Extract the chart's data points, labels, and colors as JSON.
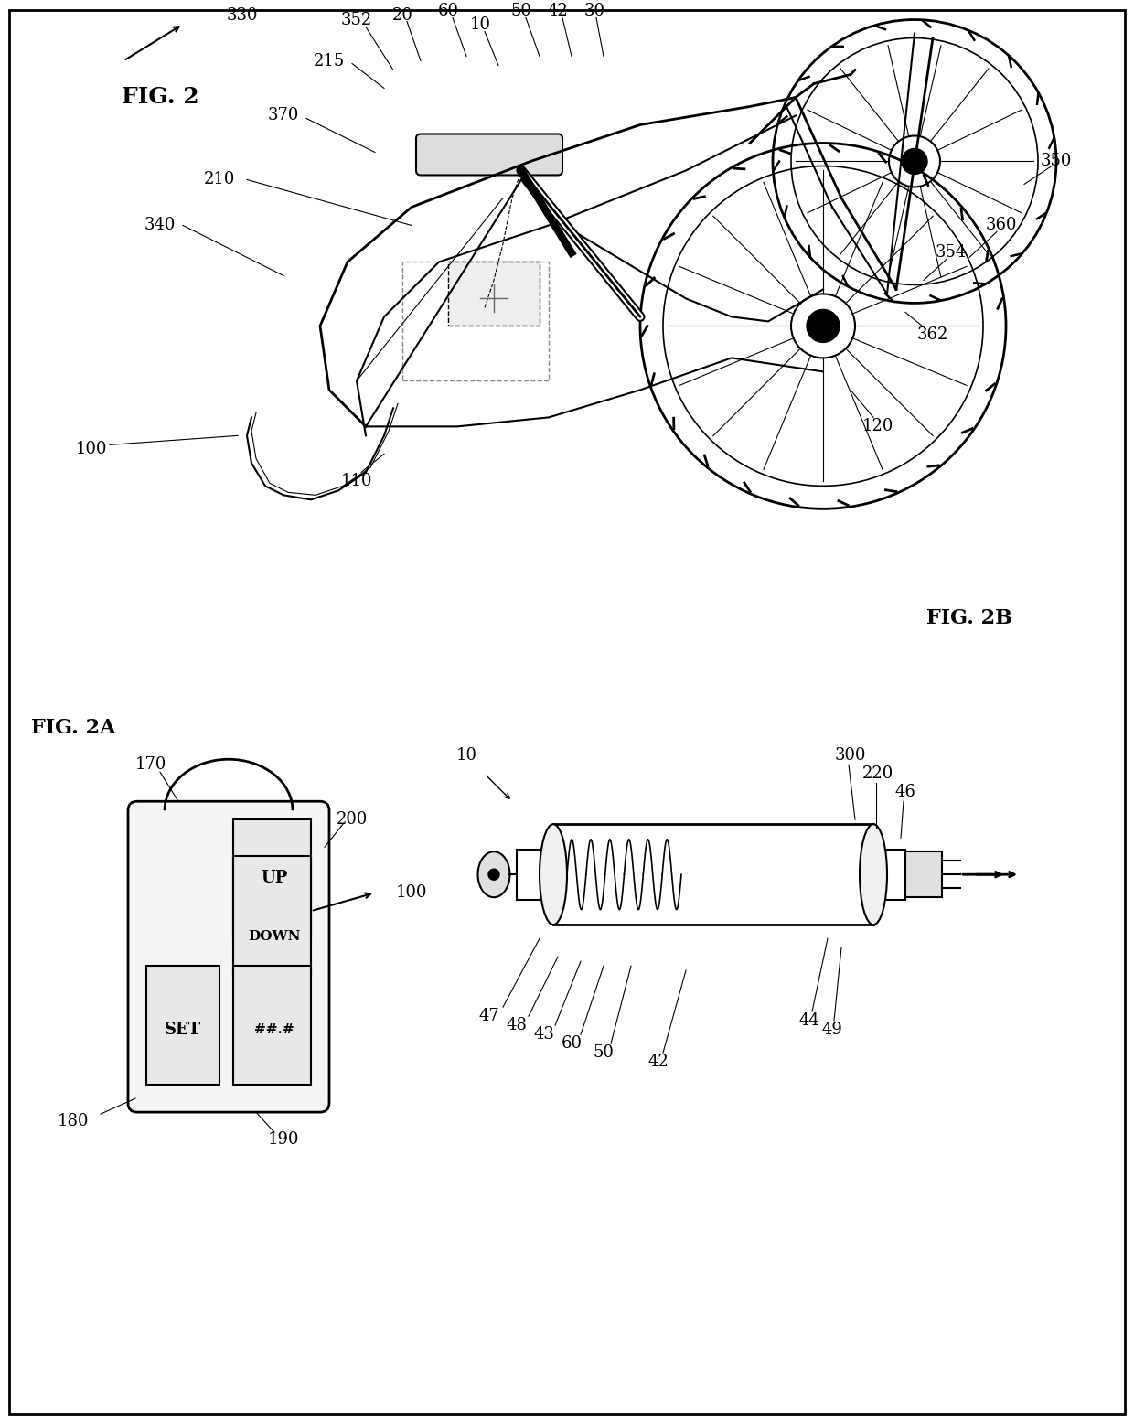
{
  "bg_color": "#ffffff",
  "line_color": "#000000",
  "title": "",
  "fig_width": 12.4,
  "fig_height": 15.56,
  "fig2_label": "FIG. 2",
  "fig2a_label": "FIG. 2A",
  "fig2b_label": "FIG. 2B",
  "ref_330": "330",
  "ref_352": "352",
  "ref_20": "20",
  "ref_60_top": "60",
  "ref_10_top": "10",
  "ref_50_top": "50",
  "ref_42_top": "42",
  "ref_30": "30",
  "ref_215": "215",
  "ref_370": "370",
  "ref_350": "350",
  "ref_360": "360",
  "ref_354": "354",
  "ref_362": "362",
  "ref_210": "210",
  "ref_340": "340",
  "ref_120": "120",
  "ref_100_main": "100",
  "ref_110": "110",
  "ref_170": "170",
  "ref_200": "200",
  "ref_180": "180",
  "ref_190": "190",
  "ref_100_arrow": "100",
  "ref_10_bot": "10",
  "ref_300": "300",
  "ref_220": "220",
  "ref_46": "46",
  "ref_47": "47",
  "ref_48": "48",
  "ref_43": "43",
  "ref_60_bot": "60",
  "ref_50_bot": "50",
  "ref_42_bot": "42",
  "ref_44": "44",
  "ref_49": "49"
}
